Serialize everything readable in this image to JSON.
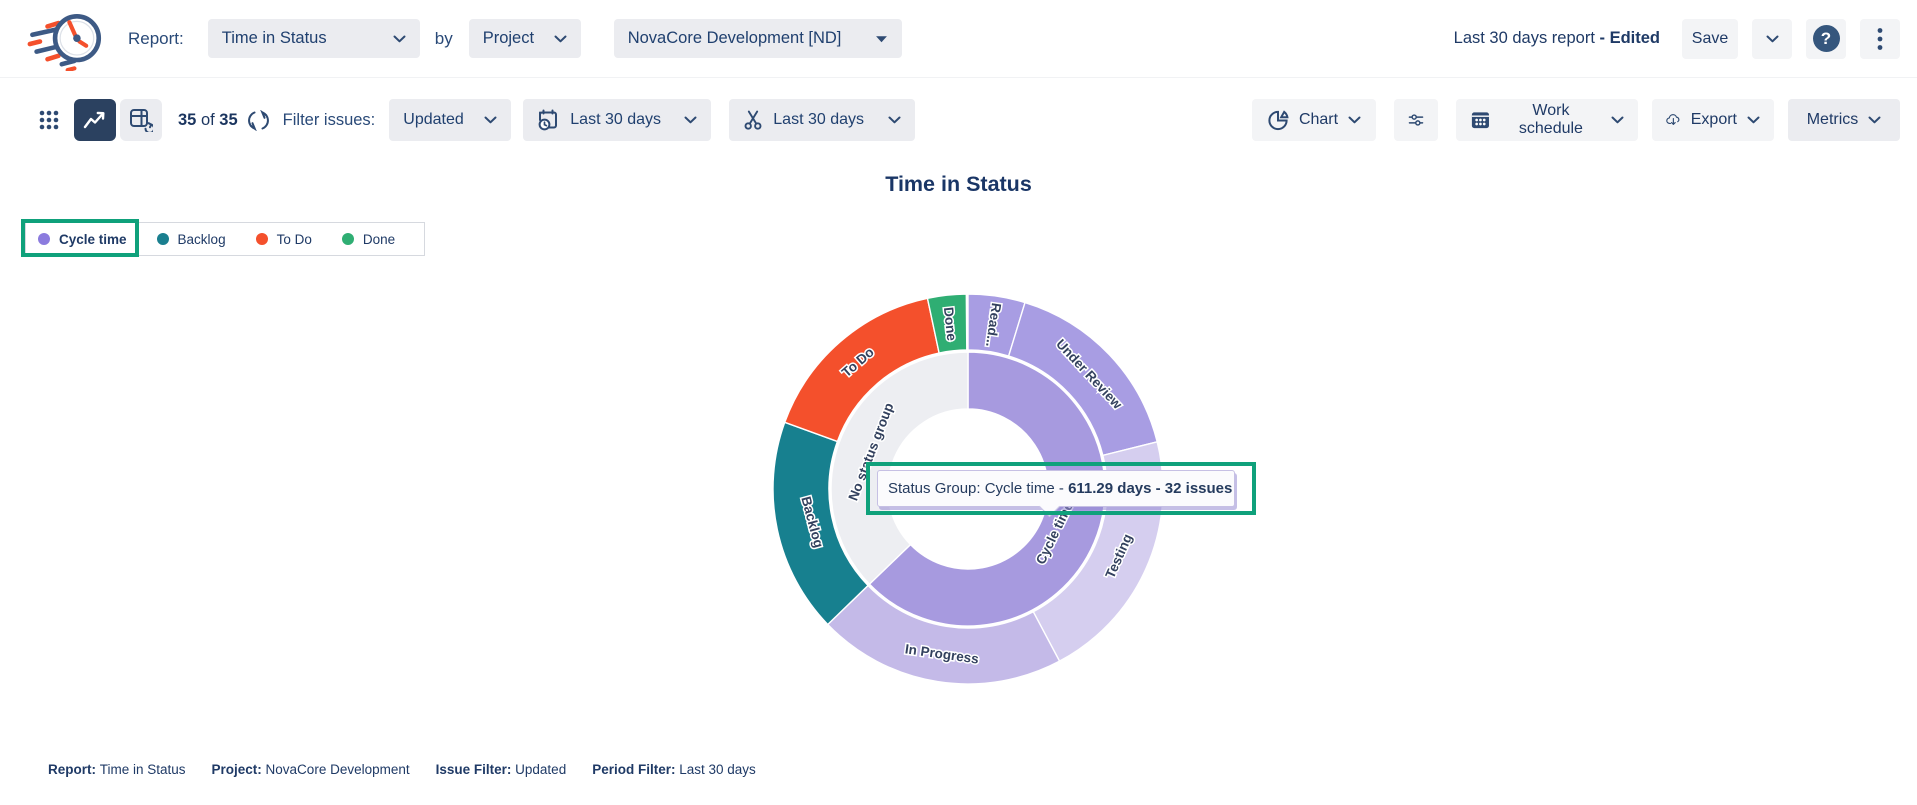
{
  "header": {
    "report_label": "Report:",
    "report_select": "Time in Status",
    "by_label": "by",
    "group_select": "Project",
    "project_select": "NovaCore Development [ND]",
    "report_name": "Last 30 days report",
    "edited_suffix": " - Edited",
    "save_label": "Save",
    "help_glyph": "?"
  },
  "toolbar": {
    "count_a": "35",
    "count_of": " of ",
    "count_b": "35",
    "filter_label": "Filter issues:",
    "issue_filter_select": "Updated",
    "period_select": "Last 30 days",
    "worklog_select": "Last 30 days",
    "chart_label": "Chart",
    "work_schedule_label": "Work schedule",
    "export_label": "Export",
    "metrics_label": "Metrics"
  },
  "chart": {
    "title": "Time in Status",
    "tooltip": {
      "prefix": "Status Group: Cycle time - ",
      "bold": "611.29 days - 32 issues"
    }
  },
  "legend": {
    "items": [
      {
        "label": "Cycle time",
        "color": "#8B7BDE",
        "bold": true,
        "highlighted": true
      },
      {
        "label": "Backlog",
        "color": "#1A7F8F",
        "bold": false,
        "highlighted": false
      },
      {
        "label": "To Do",
        "color": "#F4502C",
        "bold": false,
        "highlighted": false
      },
      {
        "label": "Done",
        "color": "#2FAE73",
        "bold": false,
        "highlighted": false
      }
    ]
  },
  "chart_data": {
    "type": "pie",
    "variant": "sunburst-donut",
    "title": "Time in Status",
    "tooltip_text": "Status Group: Cycle time - 611.29 days - 32 issues",
    "cycle_time_days": 611.29,
    "cycle_time_issues": 32,
    "inner_ring": [
      {
        "label": "Cycle time",
        "start_deg": 0,
        "end_deg": 226,
        "color": "#A79ADF",
        "label_deg": 117,
        "label_r": 98,
        "label_rot": -64
      },
      {
        "label": "No status group",
        "start_deg": 226,
        "end_deg": 360,
        "color": "#EDEEF2",
        "label_deg": 291,
        "label_r": 103,
        "label_rot": -69
      }
    ],
    "outer_ring": [
      {
        "label": "Read...",
        "start_deg": 0,
        "end_deg": 17,
        "color": "#A89DE3",
        "group": "Cycle time",
        "label_deg": 8.5,
        "label_r": 166,
        "label_rot": 98
      },
      {
        "label": "Under Review",
        "start_deg": 17,
        "end_deg": 76,
        "color": "#A89DE3",
        "group": "Cycle time",
        "label_deg": 46.5,
        "label_r": 166,
        "label_rot": 47
      },
      {
        "label": "Testing",
        "start_deg": 76,
        "end_deg": 152,
        "color": "#D5CEEF",
        "group": "Cycle time",
        "label_deg": 114,
        "label_r": 166,
        "label_rot": -66
      },
      {
        "label": "In Progress",
        "start_deg": 152,
        "end_deg": 226,
        "color": "#C4BAE8",
        "group": "Cycle time",
        "label_deg": 189,
        "label_r": 168,
        "label_rot": 8
      },
      {
        "label": "Backlog",
        "start_deg": 226,
        "end_deg": 290,
        "color": "#17808F",
        "group": "No status group",
        "label_deg": 258,
        "label_r": 160,
        "label_rot": 75
      },
      {
        "label": "To Do",
        "start_deg": 290,
        "end_deg": 348,
        "color": "#F4502C",
        "group": "No status group",
        "label_deg": 319,
        "label_r": 167,
        "label_rot": -41
      },
      {
        "label": "Done",
        "start_deg": 348,
        "end_deg": 359.5,
        "color": "#2FAE73",
        "group": "No status group",
        "label_deg": 353.5,
        "label_r": 166,
        "label_rot": 84
      }
    ]
  },
  "footer": {
    "items": [
      {
        "label": "Report:",
        "value": "Time in Status"
      },
      {
        "label": "Project:",
        "value": "NovaCore Development"
      },
      {
        "label": "Issue Filter:",
        "value": "Updated"
      },
      {
        "label": "Period Filter:",
        "value": "Last 30 days"
      }
    ]
  },
  "colors": {
    "annotation_highlight": "#0FA17B",
    "navy_text": "#1F3A66",
    "selected_view_bg": "#2B4160",
    "button_bg": "#EBECF0"
  }
}
